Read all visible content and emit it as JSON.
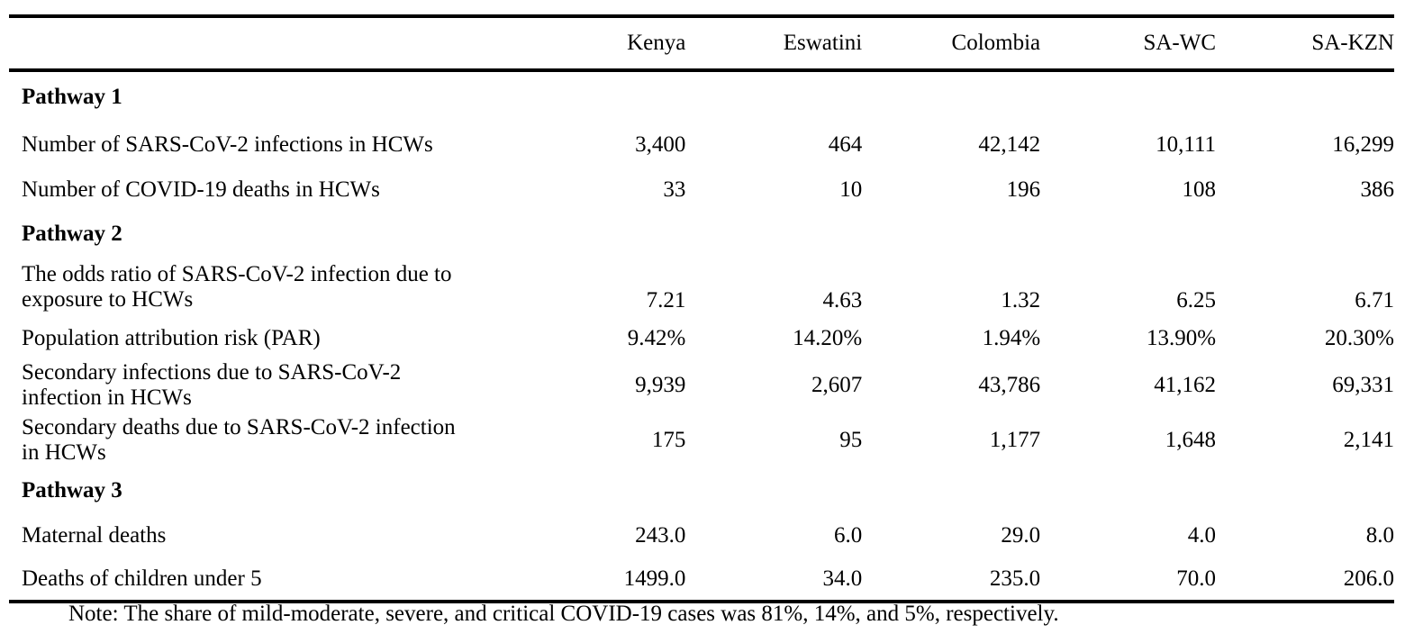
{
  "table": {
    "columns": [
      "",
      "Kenya",
      "Eswatini",
      "Colombia",
      "SA-WC",
      "SA-KZN"
    ],
    "rows": [
      {
        "type": "section",
        "label": "Pathway 1"
      },
      {
        "type": "data",
        "label": "Number of SARS-CoV-2 infections in HCWs",
        "values": [
          "3,400",
          "464",
          "42,142",
          "10,111",
          "16,299"
        ]
      },
      {
        "type": "data",
        "label": "Number of COVID-19 deaths in HCWs",
        "values": [
          "33",
          "10",
          "196",
          "108",
          "386"
        ]
      },
      {
        "type": "section",
        "label": "Pathway 2"
      },
      {
        "type": "data",
        "label_lines": [
          "The odds ratio of SARS-CoV-2 infection due to",
          "exposure to HCWs"
        ],
        "values": [
          "7.21",
          "4.63",
          "1.32",
          "6.25",
          "6.71"
        ]
      },
      {
        "type": "data",
        "label": "Population attribution risk (PAR)",
        "values": [
          "9.42%",
          "14.20%",
          "1.94%",
          "13.90%",
          "20.30%"
        ]
      },
      {
        "type": "data",
        "label_lines": [
          "Secondary infections due to SARS-CoV-2",
          "infection in HCWs"
        ],
        "values": [
          "9,939",
          "2,607",
          "43,786",
          "41,162",
          "69,331"
        ]
      },
      {
        "type": "data",
        "label_lines": [
          "Secondary deaths due to SARS-CoV-2 infection",
          "in HCWs"
        ],
        "values": [
          "175",
          "95",
          "1,177",
          "1,648",
          "2,141"
        ]
      },
      {
        "type": "section",
        "label": "Pathway 3"
      },
      {
        "type": "data",
        "label": "Maternal deaths",
        "values": [
          "243.0",
          "6.0",
          "29.0",
          "4.0",
          "8.0"
        ]
      },
      {
        "type": "data",
        "label": "Deaths of children under 5",
        "values": [
          "1499.0",
          "34.0",
          "235.0",
          "70.0",
          "206.0"
        ]
      }
    ]
  },
  "note": "Note: The share of mild-moderate, severe, and critical COVID-19 cases was 81%, 14%, and 5%, respectively."
}
